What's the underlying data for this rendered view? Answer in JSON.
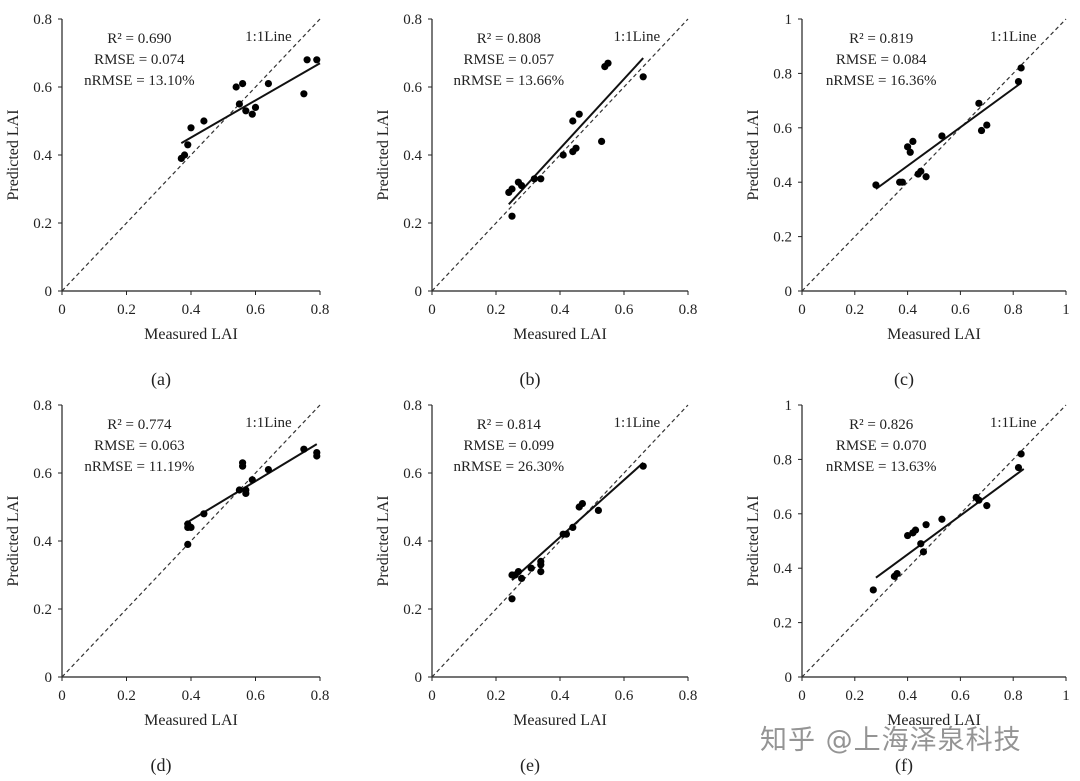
{
  "watermark": "知乎 @上海泽泉科技",
  "chart_data": [
    {
      "panel": "(a)",
      "type": "scatter",
      "xlabel": "Measured LAI",
      "ylabel": "Predicted LAI",
      "xlim": [
        0,
        0.8
      ],
      "ylim": [
        0,
        0.8
      ],
      "xticks": [
        0,
        0.2,
        0.4,
        0.6,
        0.8
      ],
      "yticks": [
        0,
        0.2,
        0.4,
        0.6,
        0.8
      ],
      "xtick_labels": [
        "0",
        "0.2",
        "0.4",
        "0.6",
        "0.8"
      ],
      "ytick_labels": [
        "0",
        "0.2",
        "0.4",
        "0.6",
        "0.8"
      ],
      "stats": [
        "R² = 0.690",
        "RMSE = 0.074",
        "nRMSE = 13.10%"
      ],
      "line_label": "1:1Line",
      "points": [
        [
          0.37,
          0.39
        ],
        [
          0.38,
          0.4
        ],
        [
          0.39,
          0.43
        ],
        [
          0.4,
          0.48
        ],
        [
          0.44,
          0.5
        ],
        [
          0.54,
          0.6
        ],
        [
          0.55,
          0.55
        ],
        [
          0.56,
          0.61
        ],
        [
          0.57,
          0.53
        ],
        [
          0.59,
          0.52
        ],
        [
          0.6,
          0.54
        ],
        [
          0.64,
          0.61
        ],
        [
          0.75,
          0.58
        ],
        [
          0.76,
          0.68
        ],
        [
          0.79,
          0.68
        ]
      ],
      "fit_line": [
        [
          0.37,
          0.435
        ],
        [
          0.8,
          0.67
        ]
      ]
    },
    {
      "panel": "(b)",
      "type": "scatter",
      "xlabel": "Measured LAI",
      "ylabel": "Predicted LAI",
      "xlim": [
        0,
        0.8
      ],
      "ylim": [
        0,
        0.8
      ],
      "xticks": [
        0,
        0.2,
        0.4,
        0.6,
        0.8
      ],
      "yticks": [
        0,
        0.2,
        0.4,
        0.6,
        0.8
      ],
      "xtick_labels": [
        "0",
        "0.2",
        "0.4",
        "0.6",
        "0.8"
      ],
      "ytick_labels": [
        "0",
        "0.2",
        "0.4",
        "0.6",
        "0.8"
      ],
      "stats": [
        "R² = 0.808",
        "RMSE = 0.057",
        "nRMSE = 13.66%"
      ],
      "line_label": "1:1Line",
      "points": [
        [
          0.24,
          0.29
        ],
        [
          0.25,
          0.22
        ],
        [
          0.25,
          0.3
        ],
        [
          0.27,
          0.32
        ],
        [
          0.28,
          0.31
        ],
        [
          0.32,
          0.33
        ],
        [
          0.34,
          0.33
        ],
        [
          0.41,
          0.4
        ],
        [
          0.44,
          0.41
        ],
        [
          0.44,
          0.5
        ],
        [
          0.45,
          0.42
        ],
        [
          0.46,
          0.52
        ],
        [
          0.53,
          0.44
        ],
        [
          0.54,
          0.66
        ],
        [
          0.55,
          0.67
        ],
        [
          0.66,
          0.63
        ]
      ],
      "fit_line": [
        [
          0.24,
          0.255
        ],
        [
          0.66,
          0.685
        ]
      ]
    },
    {
      "panel": "(c)",
      "type": "scatter",
      "xlabel": "Measured LAI",
      "ylabel": "Predicted LAI",
      "xlim": [
        0,
        1
      ],
      "ylim": [
        0,
        1
      ],
      "xticks": [
        0,
        0.2,
        0.4,
        0.6,
        0.8,
        1
      ],
      "yticks": [
        0,
        0.2,
        0.4,
        0.6,
        0.8,
        1
      ],
      "xtick_labels": [
        "0",
        "0.2",
        "0.4",
        "0.6",
        "0.8",
        "1"
      ],
      "ytick_labels": [
        "0",
        "0.2",
        "0.4",
        "0.6",
        "0.8",
        "1"
      ],
      "stats": [
        "R² = 0.819",
        "RMSE = 0.084",
        "nRMSE = 16.36%"
      ],
      "line_label": "1:1Line",
      "points": [
        [
          0.28,
          0.39
        ],
        [
          0.37,
          0.4
        ],
        [
          0.38,
          0.4
        ],
        [
          0.4,
          0.53
        ],
        [
          0.41,
          0.51
        ],
        [
          0.42,
          0.55
        ],
        [
          0.44,
          0.43
        ],
        [
          0.45,
          0.44
        ],
        [
          0.47,
          0.42
        ],
        [
          0.53,
          0.57
        ],
        [
          0.67,
          0.69
        ],
        [
          0.68,
          0.59
        ],
        [
          0.7,
          0.61
        ],
        [
          0.82,
          0.77
        ],
        [
          0.83,
          0.82
        ]
      ],
      "fit_line": [
        [
          0.28,
          0.375
        ],
        [
          0.83,
          0.765
        ]
      ]
    },
    {
      "panel": "(d)",
      "type": "scatter",
      "xlabel": "Measured LAI",
      "ylabel": "Predicted LAI",
      "xlim": [
        0,
        0.8
      ],
      "ylim": [
        0,
        0.8
      ],
      "xticks": [
        0,
        0.2,
        0.4,
        0.6,
        0.8
      ],
      "yticks": [
        0,
        0.2,
        0.4,
        0.6,
        0.8
      ],
      "xtick_labels": [
        "0",
        "0.2",
        "0.4",
        "0.6",
        "0.8"
      ],
      "ytick_labels": [
        "0",
        "0.2",
        "0.4",
        "0.6",
        "0.8"
      ],
      "stats": [
        "R² = 0.774",
        "RMSE = 0.063",
        "nRMSE = 11.19%"
      ],
      "line_label": "1:1Line",
      "points": [
        [
          0.39,
          0.39
        ],
        [
          0.39,
          0.44
        ],
        [
          0.39,
          0.45
        ],
        [
          0.4,
          0.44
        ],
        [
          0.44,
          0.48
        ],
        [
          0.55,
          0.55
        ],
        [
          0.56,
          0.63
        ],
        [
          0.56,
          0.62
        ],
        [
          0.57,
          0.54
        ],
        [
          0.57,
          0.55
        ],
        [
          0.59,
          0.58
        ],
        [
          0.64,
          0.61
        ],
        [
          0.75,
          0.67
        ],
        [
          0.79,
          0.66
        ],
        [
          0.79,
          0.65
        ]
      ],
      "fit_line": [
        [
          0.38,
          0.45
        ],
        [
          0.79,
          0.685
        ]
      ]
    },
    {
      "panel": "(e)",
      "type": "scatter",
      "xlabel": "Measured LAI",
      "ylabel": "Predicted LAI",
      "xlim": [
        0,
        0.8
      ],
      "ylim": [
        0,
        0.8
      ],
      "xticks": [
        0,
        0.2,
        0.4,
        0.6,
        0.8
      ],
      "yticks": [
        0,
        0.2,
        0.4,
        0.6,
        0.8
      ],
      "xtick_labels": [
        "0",
        "0.2",
        "0.4",
        "0.6",
        "0.8"
      ],
      "ytick_labels": [
        "0",
        "0.2",
        "0.4",
        "0.6",
        "0.8"
      ],
      "stats": [
        "R² = 0.814",
        "RMSE = 0.099",
        "nRMSE = 26.30%"
      ],
      "line_label": "1:1Line",
      "points": [
        [
          0.25,
          0.23
        ],
        [
          0.25,
          0.3
        ],
        [
          0.26,
          0.3
        ],
        [
          0.27,
          0.31
        ],
        [
          0.28,
          0.29
        ],
        [
          0.31,
          0.32
        ],
        [
          0.34,
          0.34
        ],
        [
          0.34,
          0.31
        ],
        [
          0.34,
          0.33
        ],
        [
          0.41,
          0.42
        ],
        [
          0.42,
          0.42
        ],
        [
          0.44,
          0.44
        ],
        [
          0.46,
          0.5
        ],
        [
          0.47,
          0.51
        ],
        [
          0.52,
          0.49
        ],
        [
          0.66,
          0.62
        ]
      ],
      "fit_line": [
        [
          0.25,
          0.285
        ],
        [
          0.66,
          0.63
        ]
      ]
    },
    {
      "panel": "(f)",
      "type": "scatter",
      "xlabel": "Measured LAI",
      "ylabel": "Predicted LAI",
      "xlim": [
        0,
        1
      ],
      "ylim": [
        0,
        1
      ],
      "xticks": [
        0,
        0.2,
        0.4,
        0.6,
        0.8,
        1
      ],
      "yticks": [
        0,
        0.2,
        0.4,
        0.6,
        0.8,
        1
      ],
      "xtick_labels": [
        "0",
        "0.2",
        "0.4",
        "0.6",
        "0.8",
        "1"
      ],
      "ytick_labels": [
        "0",
        "0.2",
        "0.4",
        "0.6",
        "0.8",
        "1"
      ],
      "stats": [
        "R² = 0.826",
        "RMSE = 0.070",
        "nRMSE = 13.63%"
      ],
      "line_label": "1:1Line",
      "points": [
        [
          0.27,
          0.32
        ],
        [
          0.35,
          0.37
        ],
        [
          0.36,
          0.38
        ],
        [
          0.4,
          0.52
        ],
        [
          0.42,
          0.53
        ],
        [
          0.43,
          0.54
        ],
        [
          0.45,
          0.49
        ],
        [
          0.46,
          0.46
        ],
        [
          0.47,
          0.56
        ],
        [
          0.53,
          0.58
        ],
        [
          0.66,
          0.66
        ],
        [
          0.67,
          0.65
        ],
        [
          0.7,
          0.63
        ],
        [
          0.82,
          0.77
        ],
        [
          0.83,
          0.82
        ]
      ],
      "fit_line": [
        [
          0.28,
          0.365
        ],
        [
          0.84,
          0.765
        ]
      ]
    }
  ]
}
